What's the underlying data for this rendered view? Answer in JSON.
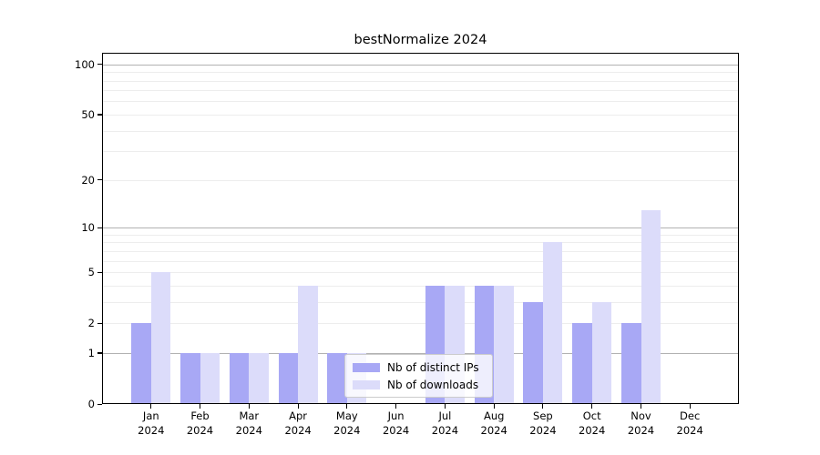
{
  "chart_data": {
    "type": "bar",
    "title": "bestNormalize 2024",
    "x": {
      "months": [
        "Jan",
        "Feb",
        "Mar",
        "Apr",
        "May",
        "Jun",
        "Jul",
        "Aug",
        "Sep",
        "Oct",
        "Nov",
        "Dec"
      ],
      "year": "2024"
    },
    "series": [
      {
        "name": "Nb of distinct IPs",
        "color": "#a8a8f5",
        "values": [
          2,
          1,
          1,
          1,
          1,
          0,
          4,
          4,
          3,
          2,
          2,
          0
        ]
      },
      {
        "name": "Nb of downloads",
        "color": "#dcdcfa",
        "values": [
          5,
          1,
          1,
          4,
          1,
          0,
          4,
          4,
          8,
          3,
          13,
          0
        ]
      }
    ],
    "y_axis": {
      "scale": "log1p",
      "tick_values": [
        0,
        1,
        2,
        5,
        10,
        20,
        50,
        100
      ],
      "major_grid_values": [
        1,
        10,
        100
      ],
      "minor_grid_values": [
        2,
        3,
        4,
        5,
        6,
        7,
        8,
        9,
        20,
        30,
        40,
        50,
        60,
        70,
        80,
        90
      ],
      "ylim": [
        0,
        116
      ]
    },
    "legend": {
      "position": "lower-center"
    },
    "colors": {
      "major_grid": "#b2b2b2",
      "minor_grid": "#ededed",
      "axis": "#000000",
      "background": "#ffffff"
    }
  }
}
